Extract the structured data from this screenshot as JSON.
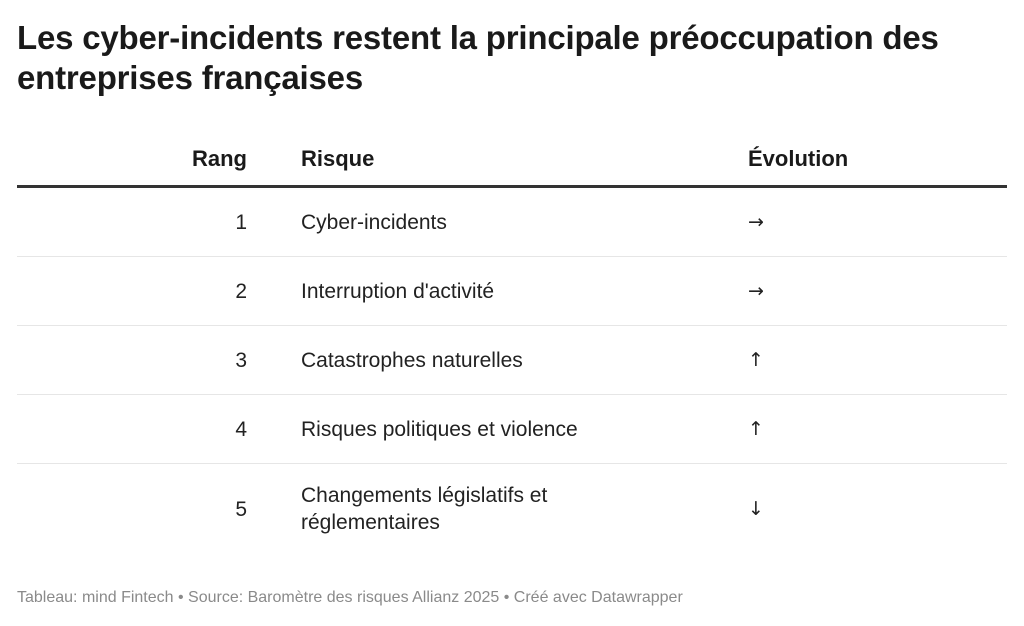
{
  "chart_data": {
    "type": "table",
    "title": "Les cyber-incidents restent la principale préoccupation des entreprises françaises",
    "columns": [
      "Rang",
      "Risque",
      "Évolution"
    ],
    "rows": [
      {
        "rang": "1",
        "risque": "Cyber-incidents",
        "evolution": "→"
      },
      {
        "rang": "2",
        "risque": "Interruption d'activité",
        "evolution": "→"
      },
      {
        "rang": "3",
        "risque": "Catastrophes naturelles",
        "evolution": "↑"
      },
      {
        "rang": "4",
        "risque": "Risques politiques et violence",
        "evolution": "↑"
      },
      {
        "rang": "5",
        "risque": "Changements législatifs et réglementaires",
        "evolution": "↓"
      }
    ]
  },
  "footer": "Tableau: mind Fintech • Source: Baromètre des risques Allianz 2025 • Créé avec Datawrapper",
  "colors": {
    "text": "#1a1a1a",
    "header_rule": "#333333",
    "row_divider": "#e6e6e6",
    "footer_text": "#8a8a8a"
  }
}
